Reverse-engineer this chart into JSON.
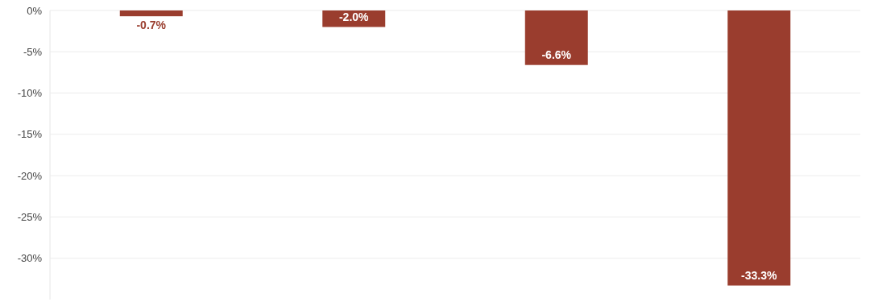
{
  "chart_data": {
    "type": "bar",
    "categories": [
      null,
      null,
      null,
      null
    ],
    "values": [
      -0.7,
      -2.0,
      -6.6,
      -33.3
    ],
    "value_labels": [
      "-0.7%",
      "-2.0%",
      "-6.6%",
      "-33.3%"
    ],
    "color": "#9a3d2e",
    "ylim": [
      -35,
      0
    ],
    "yticks": [
      {
        "value": 0,
        "label": "0%"
      },
      {
        "value": -5,
        "label": "-5%"
      },
      {
        "value": -10,
        "label": "-10%"
      },
      {
        "value": -15,
        "label": "-15%"
      },
      {
        "value": -20,
        "label": "-20%"
      },
      {
        "value": -25,
        "label": "-25%"
      },
      {
        "value": -30,
        "label": "-30%"
      }
    ],
    "grid": "y"
  }
}
